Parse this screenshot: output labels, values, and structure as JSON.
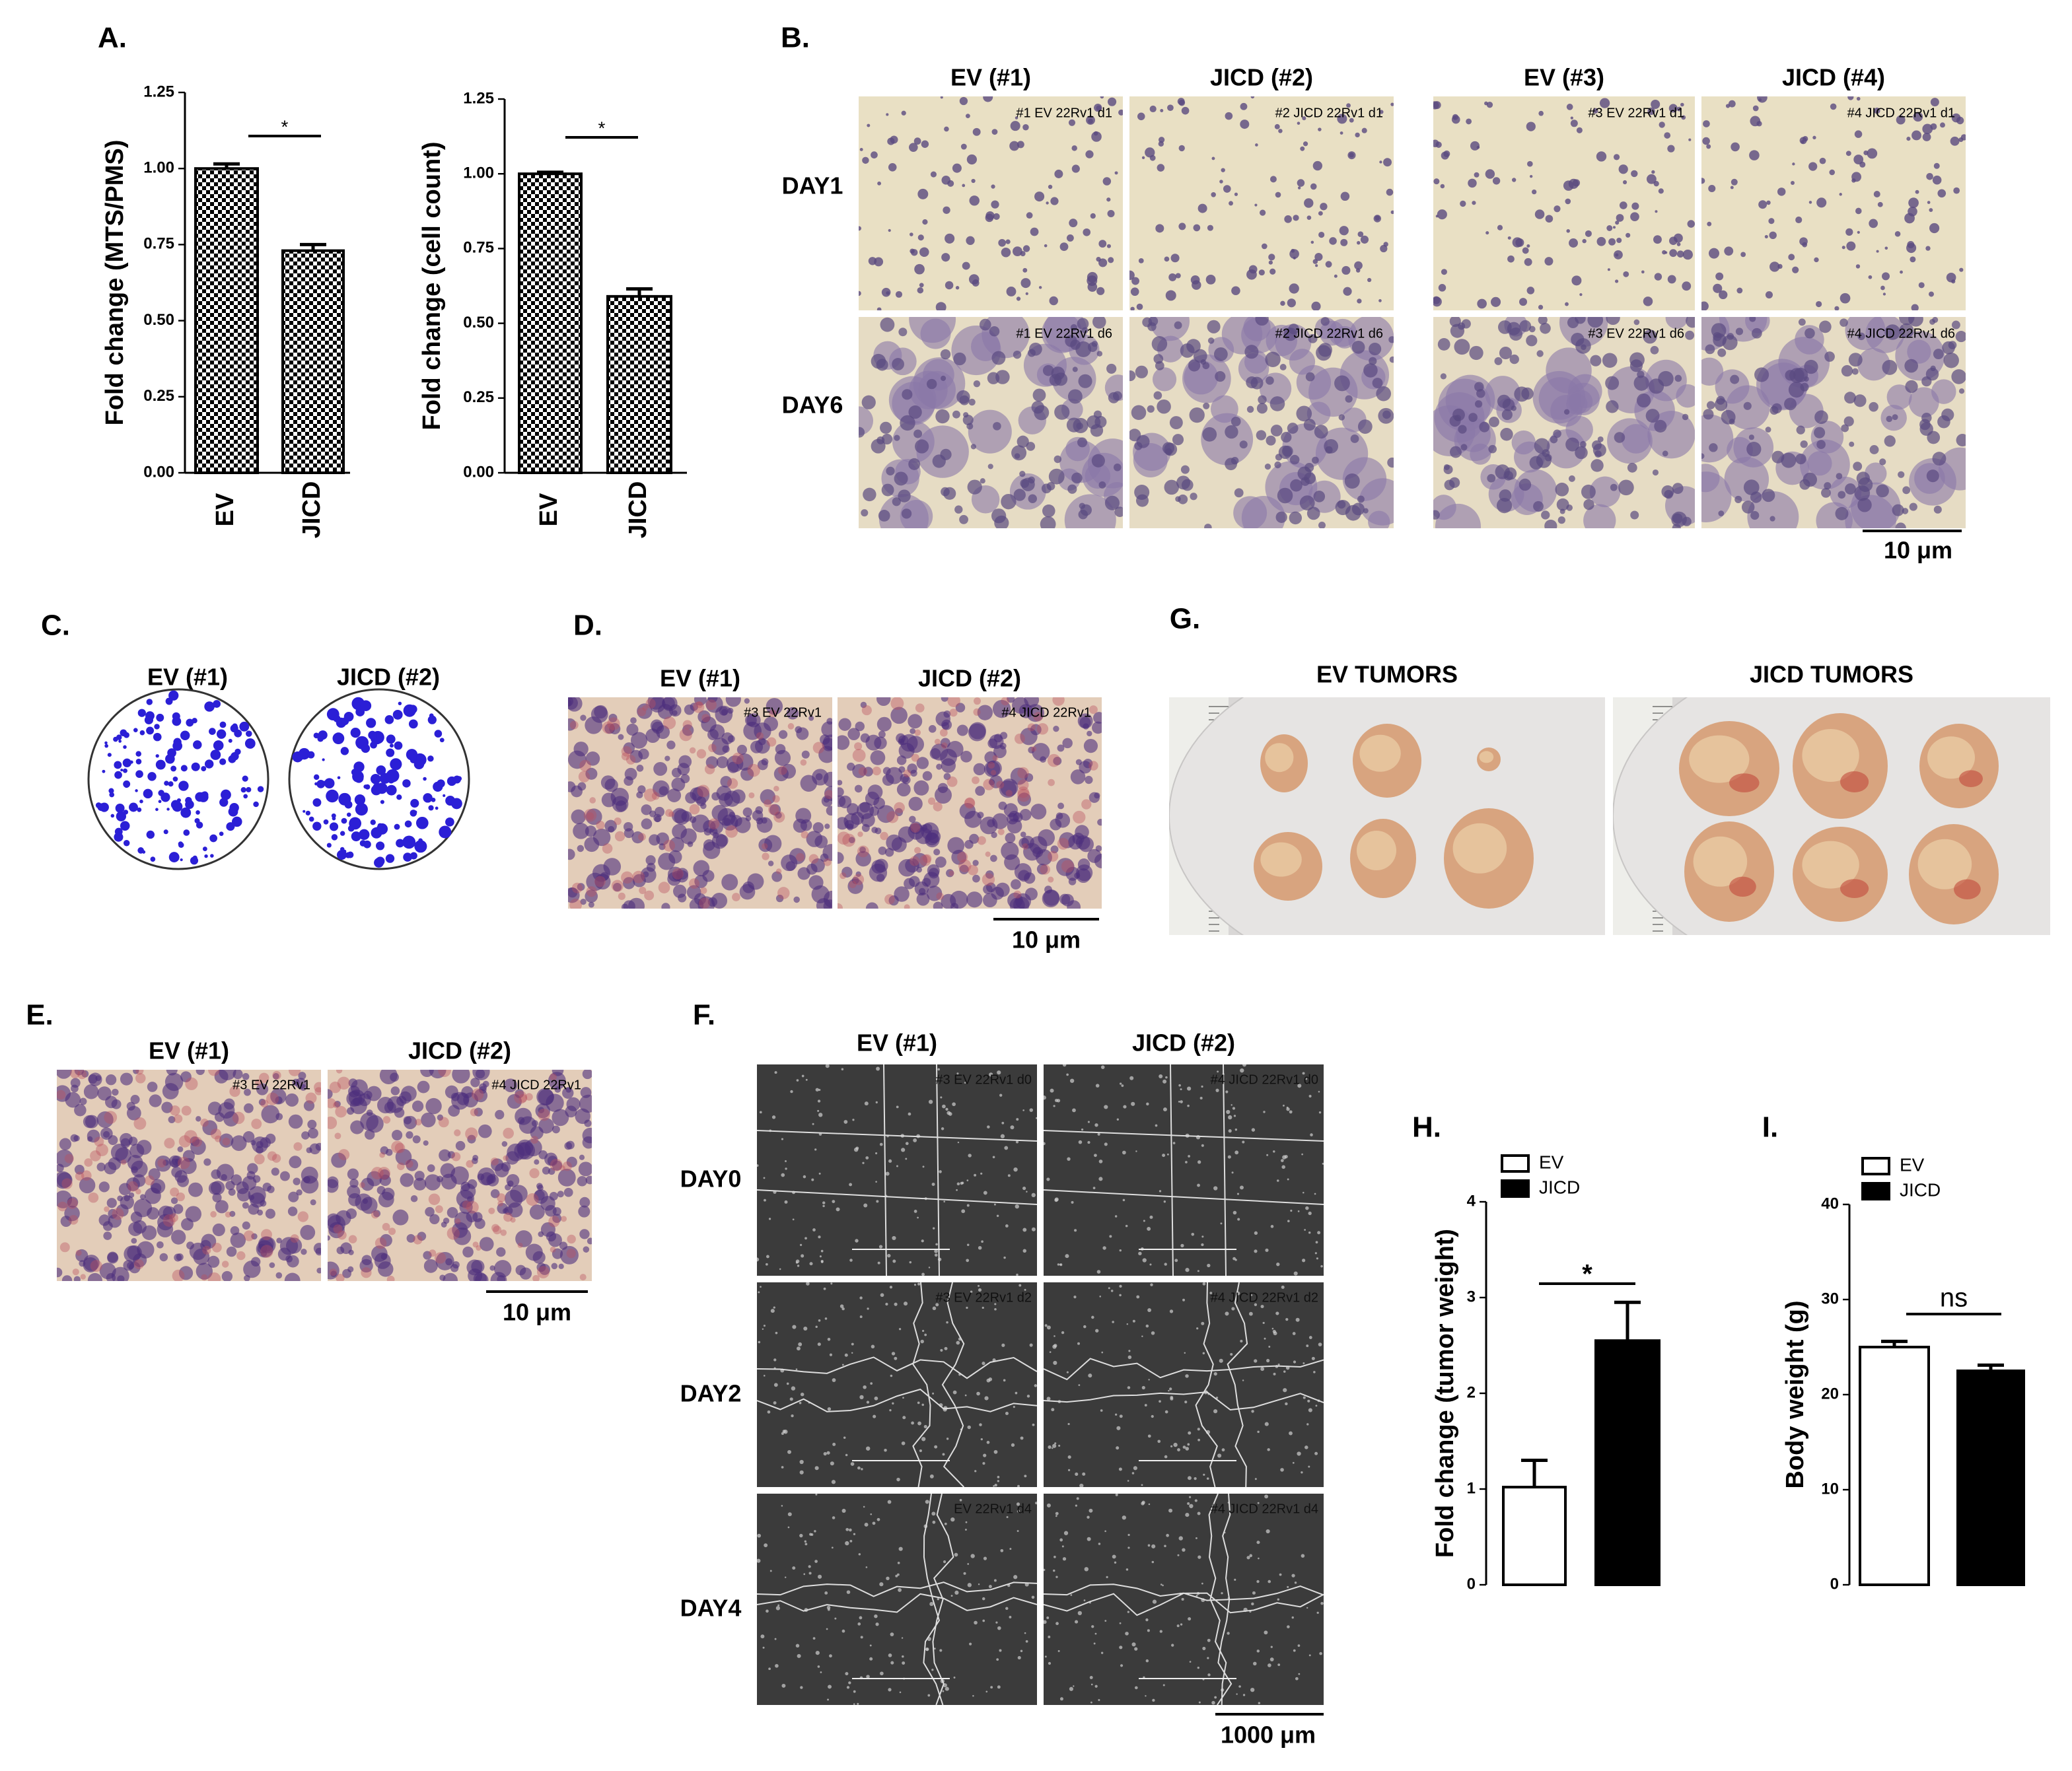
{
  "chart_data": [
    {
      "type": "bar",
      "ylabel": "Fold change (MTS/PMS)",
      "categories": [
        "EV",
        "JICD"
      ],
      "values": [
        1.0,
        0.73
      ],
      "errors": [
        0.015,
        0.02
      ],
      "color": "#000000",
      "pattern": "checkerboard",
      "annotation": "*",
      "ylim": [
        0,
        1.25
      ],
      "yticks": [
        {
          "value": 0,
          "label": "0.00"
        },
        {
          "value": 0.25,
          "label": "0.25"
        },
        {
          "value": 0.5,
          "label": "0.50"
        },
        {
          "value": 0.75,
          "label": "0.75"
        },
        {
          "value": 1,
          "label": "1.00"
        },
        {
          "value": 1.25,
          "label": "1.25"
        }
      ]
    },
    {
      "type": "bar",
      "ylabel": "Fold change (cell count)",
      "categories": [
        "EV",
        "JICD"
      ],
      "values": [
        1.0,
        0.59
      ],
      "errors": [
        0.005,
        0.025
      ],
      "color": "#000000",
      "pattern": "checkerboard",
      "annotation": "*",
      "ylim": [
        0,
        1.25
      ],
      "yticks": [
        {
          "value": 0,
          "label": "0.00"
        },
        {
          "value": 0.25,
          "label": "0.25"
        },
        {
          "value": 0.5,
          "label": "0.50"
        },
        {
          "value": 0.75,
          "label": "0.75"
        },
        {
          "value": 1,
          "label": "1.00"
        },
        {
          "value": 1.25,
          "label": "1.25"
        }
      ]
    },
    {
      "type": "bar",
      "ylabel": "Fold change (tumor weight)",
      "series": [
        {
          "name": "EV",
          "color": "#ffffff",
          "values": [
            1.02
          ],
          "errors": [
            0.28
          ]
        },
        {
          "name": "JICD",
          "color": "#000000",
          "values": [
            2.55
          ],
          "errors": [
            0.4
          ]
        }
      ],
      "annotation": "*",
      "ylim": [
        0,
        4
      ],
      "yticks": [
        0,
        1,
        2,
        3,
        4
      ]
    },
    {
      "type": "bar",
      "ylabel": "Body weight (g)",
      "series": [
        {
          "name": "EV",
          "color": "#ffffff",
          "values": [
            25
          ],
          "errors": [
            0.6
          ]
        },
        {
          "name": "JICD",
          "color": "#000000",
          "values": [
            22.5
          ],
          "errors": [
            0.6
          ]
        }
      ],
      "annotation": "ns",
      "ylim": [
        0,
        40
      ],
      "yticks": [
        0,
        10,
        20,
        30,
        40
      ]
    }
  ],
  "figure": {
    "panel_labels": [
      "A.",
      "B.",
      "C.",
      "D.",
      "E.",
      "F.",
      "G.",
      "H.",
      "I."
    ],
    "B": {
      "columns": [
        "EV (#1)",
        "JICD (#2)",
        "EV (#3)",
        "JICD (#4)"
      ],
      "rows": [
        "DAY1",
        "DAY6"
      ],
      "image_labels": [
        [
          "#1 EV 22Rv1 d1",
          "#2 JICD 22Rv1 d1",
          "#3 EV 22Rv1 d1",
          "#4 JICD 22Rv1 d1"
        ],
        [
          "#1 EV 22Rv1 d6",
          "#2 JICD 22Rv1 d6",
          "#3 EV 22Rv1 d6",
          "#4 JICD 22Rv1 d6"
        ]
      ],
      "scale_bar": "10 μm"
    },
    "C": {
      "columns": [
        "EV (#1)",
        "JICD (#2)"
      ]
    },
    "D": {
      "columns": [
        "EV (#1)",
        "JICD (#2)"
      ],
      "image_labels": [
        "#3 EV 22Rv1",
        "#4 JICD 22Rv1"
      ],
      "scale_bar": "10 μm"
    },
    "E": {
      "columns": [
        "EV (#1)",
        "JICD (#2)"
      ],
      "image_labels": [
        "#3 EV 22Rv1",
        "#4 JICD 22Rv1"
      ],
      "scale_bar": "10 μm"
    },
    "F": {
      "columns": [
        "EV (#1)",
        "JICD (#2)"
      ],
      "rows": [
        "DAY0",
        "DAY2",
        "DAY4"
      ],
      "image_labels": [
        [
          "#3 EV 22Rv1 d0",
          "#4 JICD 22Rv1 d0"
        ],
        [
          "#3 EV 22Rv1 d2",
          "#4 JICD 22Rv1 d2"
        ],
        [
          "EV 22Rv1 d4",
          "#4 JICD 22Rv1 d4"
        ]
      ],
      "scale_bar": "1000 μm"
    },
    "G": {
      "columns": [
        "EV TUMORS",
        "JICD TUMORS"
      ]
    }
  }
}
